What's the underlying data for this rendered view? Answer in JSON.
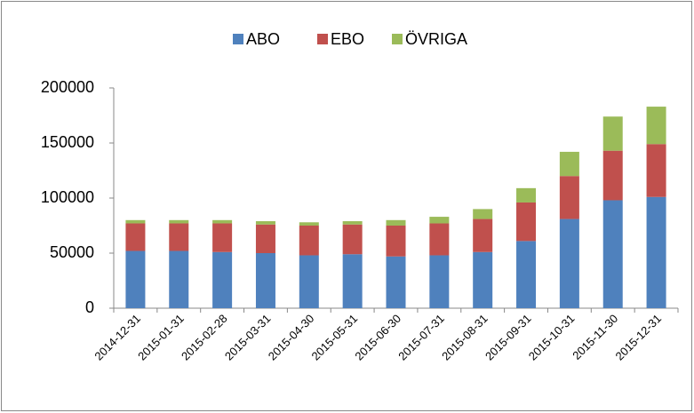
{
  "chart_data": {
    "type": "stacked_bar",
    "categories": [
      "2014-12-31",
      "2015-01-31",
      "2015-02-28",
      "2015-03-31",
      "2015-04-30",
      "2015-05-31",
      "2015-06-30",
      "2015-07-31",
      "2015-08-31",
      "2015-09-31",
      "2015-10-31",
      "2015-11-30",
      "2015-12-31"
    ],
    "series": [
      {
        "name": "ABO",
        "color": "#4f81bd",
        "values": [
          52000,
          52000,
          51000,
          50000,
          48000,
          49000,
          47000,
          48000,
          51000,
          61000,
          81000,
          98000,
          101000
        ]
      },
      {
        "name": "EBO",
        "color": "#c0504d",
        "values": [
          25000,
          25000,
          26000,
          26000,
          27000,
          27000,
          28000,
          29000,
          30000,
          35000,
          39000,
          45000,
          48000
        ]
      },
      {
        "name": "ÖVRIGA",
        "color": "#9bbb59",
        "values": [
          3000,
          3000,
          3000,
          3000,
          3000,
          3000,
          5000,
          6000,
          9000,
          13000,
          22000,
          31000,
          34000
        ]
      }
    ],
    "ylim": [
      0,
      200000
    ],
    "yticks": [
      0,
      50000,
      100000,
      150000,
      200000
    ],
    "legend": "top"
  }
}
